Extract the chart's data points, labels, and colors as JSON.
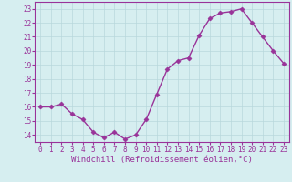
{
  "x": [
    0,
    1,
    2,
    3,
    4,
    5,
    6,
    7,
    8,
    9,
    10,
    11,
    12,
    13,
    14,
    15,
    16,
    17,
    18,
    19,
    20,
    21,
    22,
    23
  ],
  "y": [
    16.0,
    16.0,
    16.2,
    15.5,
    15.1,
    14.2,
    13.8,
    14.2,
    13.7,
    14.0,
    15.1,
    16.9,
    18.7,
    19.3,
    19.5,
    21.1,
    22.3,
    22.7,
    22.8,
    23.0,
    22.0,
    21.0,
    20.0,
    19.1
  ],
  "line_color": "#993399",
  "marker": "D",
  "marker_size": 2.5,
  "bg_color": "#d6eef0",
  "grid_color": "#b8d8dc",
  "xlabel": "Windchill (Refroidissement éolien,°C)",
  "ylim": [
    13.5,
    23.5
  ],
  "xlim": [
    -0.5,
    23.5
  ],
  "yticks": [
    14,
    15,
    16,
    17,
    18,
    19,
    20,
    21,
    22,
    23
  ],
  "xticks": [
    0,
    1,
    2,
    3,
    4,
    5,
    6,
    7,
    8,
    9,
    10,
    11,
    12,
    13,
    14,
    15,
    16,
    17,
    18,
    19,
    20,
    21,
    22,
    23
  ],
  "tick_fontsize": 5.5,
  "xlabel_fontsize": 6.5,
  "label_color": "#993399",
  "linewidth": 1.0
}
